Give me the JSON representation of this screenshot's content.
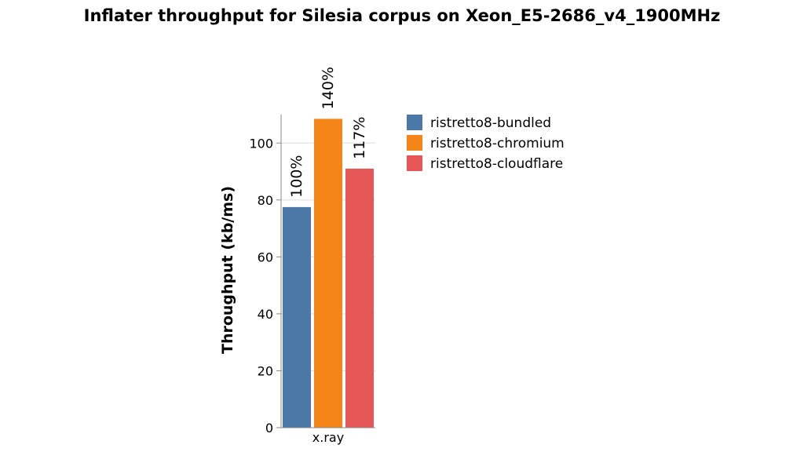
{
  "chart_data": {
    "type": "bar",
    "title": "Inflater throughput for Silesia corpus on Xeon_E5-2686_v4_1900MHz",
    "xlabel": "",
    "ylabel": "Throughput (kb/ms)",
    "categories": [
      "x.ray"
    ],
    "ylim": [
      0,
      110
    ],
    "yticks": [
      0,
      20,
      40,
      60,
      80,
      100
    ],
    "grid": true,
    "legend_position": "right",
    "series": [
      {
        "name": "ristretto8-bundled",
        "color": "#4c78a8",
        "values": [
          77.5
        ],
        "label": "100%"
      },
      {
        "name": "ristretto8-chromium",
        "color": "#f58518",
        "values": [
          108.5
        ],
        "label": "140%"
      },
      {
        "name": "ristretto8-cloudflare",
        "color": "#e45756",
        "values": [
          91
        ],
        "label": "117%"
      }
    ]
  }
}
